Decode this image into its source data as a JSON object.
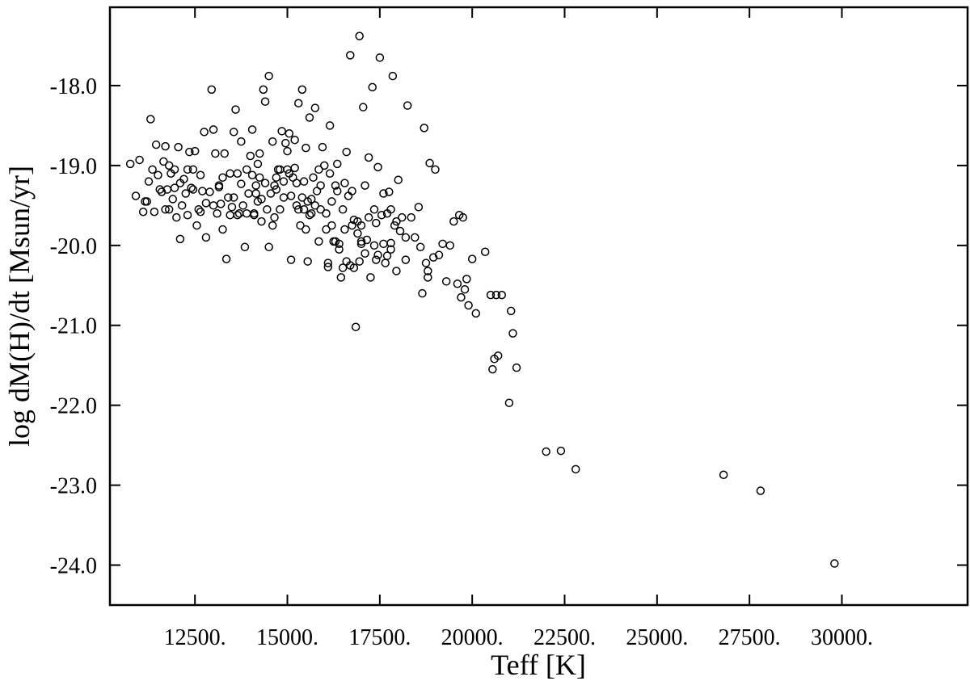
{
  "chart_data": {
    "type": "scatter",
    "title": "",
    "xlabel": "Teff [K]",
    "ylabel": "log dM(H)/dt [Msun/yr]",
    "xlim": [
      10200,
      33400
    ],
    "ylim": [
      -24.5,
      -17.02
    ],
    "xticks": [
      {
        "value": 12500,
        "label": "12500."
      },
      {
        "value": 15000,
        "label": "15000."
      },
      {
        "value": 17500,
        "label": "17500."
      },
      {
        "value": 20000,
        "label": "20000."
      },
      {
        "value": 22500,
        "label": "22500."
      },
      {
        "value": 25000,
        "label": "25000."
      },
      {
        "value": 27500,
        "label": "27500."
      },
      {
        "value": 30000,
        "label": "30000."
      }
    ],
    "yticks": [
      {
        "value": -18,
        "label": "-18.0"
      },
      {
        "value": -19,
        "label": "-19.0"
      },
      {
        "value": -20,
        "label": "-20.0"
      },
      {
        "value": -21,
        "label": "-21.0"
      },
      {
        "value": -22,
        "label": "-22.0"
      },
      {
        "value": -23,
        "label": "-23.0"
      },
      {
        "value": -24,
        "label": "-24.0"
      }
    ],
    "grid": false,
    "marker": "open-circle",
    "points": [
      [
        10750,
        -18.98
      ],
      [
        10900,
        -19.38
      ],
      [
        11000,
        -18.93
      ],
      [
        11100,
        -19.58
      ],
      [
        11200,
        -19.45
      ],
      [
        11250,
        -19.2
      ],
      [
        11300,
        -18.42
      ],
      [
        11350,
        -19.05
      ],
      [
        11400,
        -19.58
      ],
      [
        11450,
        -18.74
      ],
      [
        11500,
        -19.12
      ],
      [
        11600,
        -19.33
      ],
      [
        11650,
        -18.95
      ],
      [
        11700,
        -18.76
      ],
      [
        11750,
        -19.3
      ],
      [
        11800,
        -19.55
      ],
      [
        11850,
        -19.1
      ],
      [
        11900,
        -19.42
      ],
      [
        11950,
        -19.28
      ],
      [
        12000,
        -19.65
      ],
      [
        12050,
        -18.77
      ],
      [
        12100,
        -19.92
      ],
      [
        12150,
        -19.5
      ],
      [
        12200,
        -19.17
      ],
      [
        12250,
        -19.35
      ],
      [
        12300,
        -19.05
      ],
      [
        12350,
        -18.83
      ],
      [
        12400,
        -19.28
      ],
      [
        12450,
        -19.3
      ],
      [
        12500,
        -18.82
      ],
      [
        12550,
        -19.75
      ],
      [
        12600,
        -19.55
      ],
      [
        12650,
        -19.12
      ],
      [
        12700,
        -19.32
      ],
      [
        12750,
        -18.58
      ],
      [
        12800,
        -19.47
      ],
      [
        12900,
        -19.33
      ],
      [
        12950,
        -18.05
      ],
      [
        13000,
        -18.55
      ],
      [
        13050,
        -18.85
      ],
      [
        13100,
        -19.6
      ],
      [
        13150,
        -19.27
      ],
      [
        13200,
        -19.48
      ],
      [
        13250,
        -19.8
      ],
      [
        13300,
        -18.85
      ],
      [
        13350,
        -20.17
      ],
      [
        13400,
        -19.4
      ],
      [
        13450,
        -19.62
      ],
      [
        13500,
        -19.52
      ],
      [
        13550,
        -18.58
      ],
      [
        13600,
        -18.3
      ],
      [
        13650,
        -19.1
      ],
      [
        13700,
        -19.6
      ],
      [
        13750,
        -19.23
      ],
      [
        13800,
        -19.5
      ],
      [
        13850,
        -20.02
      ],
      [
        13900,
        -19.05
      ],
      [
        13950,
        -19.35
      ],
      [
        14000,
        -18.88
      ],
      [
        14050,
        -19.12
      ],
      [
        14100,
        -19.6
      ],
      [
        14150,
        -19.35
      ],
      [
        14200,
        -18.98
      ],
      [
        14250,
        -19.15
      ],
      [
        14300,
        -19.42
      ],
      [
        14350,
        -18.05
      ],
      [
        14400,
        -18.2
      ],
      [
        14450,
        -19.55
      ],
      [
        14500,
        -17.88
      ],
      [
        14550,
        -19.35
      ],
      [
        14600,
        -18.7
      ],
      [
        14650,
        -19.65
      ],
      [
        14700,
        -19.3
      ],
      [
        14750,
        -19.05
      ],
      [
        14800,
        -19.55
      ],
      [
        14850,
        -18.57
      ],
      [
        14900,
        -19.2
      ],
      [
        14950,
        -18.72
      ],
      [
        15000,
        -19.05
      ],
      [
        15050,
        -18.6
      ],
      [
        15100,
        -19.38
      ],
      [
        15150,
        -19.15
      ],
      [
        15200,
        -18.68
      ],
      [
        15250,
        -19.5
      ],
      [
        15300,
        -18.22
      ],
      [
        15350,
        -19.75
      ],
      [
        15400,
        -18.05
      ],
      [
        15450,
        -19.2
      ],
      [
        15500,
        -18.78
      ],
      [
        15550,
        -19.45
      ],
      [
        15600,
        -18.4
      ],
      [
        15650,
        -19.6
      ],
      [
        15700,
        -19.15
      ],
      [
        15750,
        -18.28
      ],
      [
        15800,
        -19.32
      ],
      [
        15850,
        -19.05
      ],
      [
        15900,
        -19.55
      ],
      [
        15950,
        -18.77
      ],
      [
        16000,
        -19.0
      ],
      [
        16050,
        -19.8
      ],
      [
        16100,
        -20.27
      ],
      [
        16150,
        -18.5
      ],
      [
        16200,
        -19.45
      ],
      [
        16250,
        -19.95
      ],
      [
        16300,
        -19.25
      ],
      [
        16350,
        -18.98
      ],
      [
        16400,
        -20.05
      ],
      [
        16450,
        -20.4
      ],
      [
        16500,
        -19.55
      ],
      [
        16550,
        -19.22
      ],
      [
        16600,
        -18.83
      ],
      [
        16650,
        -19.38
      ],
      [
        16700,
        -17.62
      ],
      [
        16750,
        -19.75
      ],
      [
        16800,
        -20.28
      ],
      [
        16850,
        -21.02
      ],
      [
        16900,
        -19.7
      ],
      [
        16950,
        -17.38
      ],
      [
        17000,
        -19.95
      ],
      [
        17050,
        -18.27
      ],
      [
        17100,
        -19.25
      ],
      [
        17150,
        -19.93
      ],
      [
        17200,
        -18.9
      ],
      [
        17250,
        -20.4
      ],
      [
        17300,
        -18.02
      ],
      [
        17350,
        -19.55
      ],
      [
        17400,
        -20.18
      ],
      [
        17450,
        -19.02
      ],
      [
        17500,
        -17.65
      ],
      [
        17550,
        -19.62
      ],
      [
        17600,
        -19.98
      ],
      [
        17650,
        -20.22
      ],
      [
        17700,
        -19.6
      ],
      [
        17750,
        -19.33
      ],
      [
        17800,
        -20.05
      ],
      [
        17850,
        -17.88
      ],
      [
        17900,
        -19.75
      ],
      [
        17950,
        -20.32
      ],
      [
        18000,
        -19.18
      ],
      [
        18100,
        -19.65
      ],
      [
        18200,
        -20.18
      ],
      [
        18250,
        -18.25
      ],
      [
        18350,
        -19.65
      ],
      [
        18450,
        -19.9
      ],
      [
        18550,
        -19.52
      ],
      [
        18650,
        -20.6
      ],
      [
        18700,
        -18.53
      ],
      [
        18800,
        -20.32
      ],
      [
        18850,
        -18.97
      ],
      [
        18950,
        -20.15
      ],
      [
        19000,
        -19.05
      ],
      [
        19100,
        -20.12
      ],
      [
        19200,
        -19.98
      ],
      [
        19300,
        -20.45
      ],
      [
        19400,
        -20.0
      ],
      [
        19500,
        -19.7
      ],
      [
        19600,
        -20.48
      ],
      [
        19650,
        -19.62
      ],
      [
        19700,
        -20.65
      ],
      [
        19750,
        -19.65
      ],
      [
        19800,
        -20.55
      ],
      [
        19850,
        -20.42
      ],
      [
        19900,
        -20.75
      ],
      [
        20000,
        -20.17
      ],
      [
        20100,
        -20.85
      ],
      [
        20350,
        -20.08
      ],
      [
        20500,
        -20.62
      ],
      [
        20550,
        -21.55
      ],
      [
        20600,
        -21.42
      ],
      [
        20650,
        -20.62
      ],
      [
        20700,
        -21.38
      ],
      [
        20800,
        -20.62
      ],
      [
        21000,
        -21.97
      ],
      [
        21050,
        -20.82
      ],
      [
        21100,
        -21.1
      ],
      [
        21200,
        -21.53
      ],
      [
        22000,
        -22.58
      ],
      [
        22400,
        -22.57
      ],
      [
        22800,
        -22.8
      ],
      [
        26800,
        -22.87
      ],
      [
        27800,
        -23.07
      ],
      [
        29800,
        -23.98
      ],
      [
        11150,
        -19.45
      ],
      [
        11550,
        -19.3
      ],
      [
        11700,
        -19.55
      ],
      [
        12100,
        -19.22
      ],
      [
        12650,
        -19.58
      ],
      [
        13150,
        -19.25
      ],
      [
        13550,
        -19.4
      ],
      [
        13650,
        -19.62
      ],
      [
        13750,
        -18.7
      ],
      [
        13900,
        -19.6
      ],
      [
        14100,
        -19.62
      ],
      [
        14200,
        -19.45
      ],
      [
        14300,
        -19.7
      ],
      [
        14400,
        -19.22
      ],
      [
        14500,
        -20.02
      ],
      [
        14650,
        -19.25
      ],
      [
        14800,
        -19.05
      ],
      [
        14900,
        -19.4
      ],
      [
        15050,
        -19.1
      ],
      [
        15100,
        -20.18
      ],
      [
        15200,
        -19.03
      ],
      [
        15300,
        -19.55
      ],
      [
        15400,
        -19.4
      ],
      [
        15500,
        -19.8
      ],
      [
        15550,
        -20.2
      ],
      [
        15650,
        -19.42
      ],
      [
        15750,
        -19.5
      ],
      [
        15900,
        -19.25
      ],
      [
        16100,
        -20.22
      ],
      [
        16200,
        -19.75
      ],
      [
        16300,
        -19.95
      ],
      [
        16400,
        -19.98
      ],
      [
        16500,
        -20.28
      ],
      [
        16600,
        -20.2
      ],
      [
        16700,
        -20.25
      ],
      [
        16800,
        -19.68
      ],
      [
        16900,
        -19.85
      ],
      [
        17000,
        -19.98
      ],
      [
        17100,
        -20.1
      ],
      [
        17200,
        -19.65
      ],
      [
        17350,
        -20.0
      ],
      [
        17450,
        -20.12
      ],
      [
        17600,
        -19.35
      ],
      [
        17700,
        -20.13
      ],
      [
        17800,
        -19.97
      ],
      [
        17950,
        -19.7
      ],
      [
        18050,
        -19.82
      ],
      [
        18600,
        -20.02
      ],
      [
        18750,
        -20.22
      ],
      [
        18800,
        -20.4
      ],
      [
        11950,
        -19.05
      ],
      [
        12300,
        -19.62
      ],
      [
        13000,
        -19.5
      ],
      [
        13450,
        -19.1
      ],
      [
        14050,
        -18.55
      ],
      [
        14250,
        -18.85
      ],
      [
        14600,
        -19.75
      ],
      [
        14700,
        -19.15
      ],
      [
        15000,
        -18.82
      ],
      [
        15250,
        -19.22
      ],
      [
        15450,
        -19.55
      ],
      [
        15600,
        -19.62
      ],
      [
        15850,
        -19.95
      ],
      [
        16050,
        -19.6
      ],
      [
        16350,
        -19.32
      ],
      [
        16550,
        -19.8
      ],
      [
        16750,
        -19.32
      ],
      [
        17000,
        -19.75
      ],
      [
        17400,
        -19.72
      ],
      [
        17800,
        -19.55
      ],
      [
        18200,
        -19.9
      ],
      [
        16150,
        -19.1
      ],
      [
        16950,
        -20.2
      ],
      [
        14150,
        -19.25
      ],
      [
        13250,
        -19.15
      ],
      [
        12450,
        -19.05
      ],
      [
        12800,
        -19.9
      ],
      [
        11800,
        -19.0
      ]
    ]
  }
}
